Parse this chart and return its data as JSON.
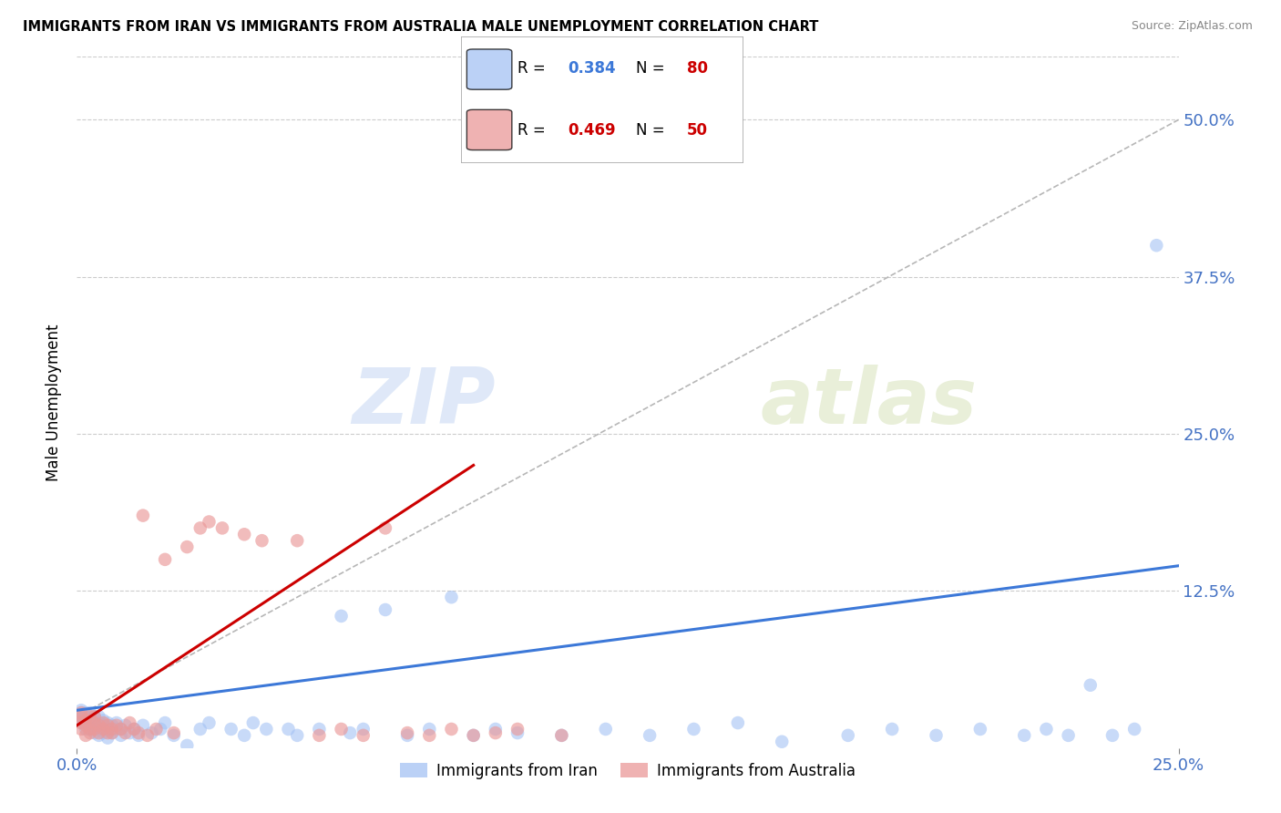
{
  "title": "IMMIGRANTS FROM IRAN VS IMMIGRANTS FROM AUSTRALIA MALE UNEMPLOYMENT CORRELATION CHART",
  "source": "Source: ZipAtlas.com",
  "ylabel": "Male Unemployment",
  "y_tick_labels": [
    "50.0%",
    "37.5%",
    "25.0%",
    "12.5%"
  ],
  "y_tick_values": [
    0.5,
    0.375,
    0.25,
    0.125
  ],
  "xmin": 0.0,
  "xmax": 0.25,
  "ymin": 0.0,
  "ymax": 0.55,
  "iran_color": "#a4c2f4",
  "australia_color": "#ea9999",
  "iran_line_color": "#3c78d8",
  "australia_line_color": "#cc0000",
  "dashed_line_color": "#b7b7b7",
  "watermark_color": "#c9daf8",
  "background_color": "#ffffff",
  "grid_color": "#cccccc",
  "iran_trend": [
    0.0,
    0.25,
    0.03,
    0.145
  ],
  "aus_trend": [
    0.0,
    0.09,
    0.018,
    0.225
  ],
  "diag_line": [
    0.0,
    0.25,
    0.025,
    0.5
  ],
  "iran_scatter_x": [
    0.001,
    0.001,
    0.001,
    0.001,
    0.002,
    0.002,
    0.002,
    0.002,
    0.002,
    0.003,
    0.003,
    0.003,
    0.003,
    0.003,
    0.004,
    0.004,
    0.004,
    0.004,
    0.005,
    0.005,
    0.005,
    0.005,
    0.006,
    0.006,
    0.006,
    0.007,
    0.007,
    0.007,
    0.008,
    0.008,
    0.009,
    0.009,
    0.01,
    0.01,
    0.011,
    0.012,
    0.013,
    0.014,
    0.015,
    0.017,
    0.019,
    0.02,
    0.022,
    0.025,
    0.028,
    0.03,
    0.035,
    0.038,
    0.04,
    0.043,
    0.048,
    0.05,
    0.055,
    0.06,
    0.062,
    0.065,
    0.07,
    0.075,
    0.08,
    0.085,
    0.09,
    0.095,
    0.1,
    0.11,
    0.12,
    0.13,
    0.14,
    0.15,
    0.16,
    0.175,
    0.185,
    0.195,
    0.205,
    0.215,
    0.22,
    0.225,
    0.23,
    0.235,
    0.24,
    0.245
  ],
  "iran_scatter_y": [
    0.02,
    0.025,
    0.028,
    0.03,
    0.015,
    0.02,
    0.025,
    0.028,
    0.022,
    0.018,
    0.022,
    0.025,
    0.028,
    0.015,
    0.02,
    0.025,
    0.018,
    0.012,
    0.015,
    0.02,
    0.025,
    0.01,
    0.018,
    0.022,
    0.012,
    0.015,
    0.02,
    0.008,
    0.018,
    0.012,
    0.015,
    0.02,
    0.015,
    0.01,
    0.018,
    0.012,
    0.015,
    0.01,
    0.018,
    0.012,
    0.015,
    0.02,
    0.01,
    0.002,
    0.015,
    0.02,
    0.015,
    0.01,
    0.02,
    0.015,
    0.015,
    0.01,
    0.015,
    0.105,
    0.012,
    0.015,
    0.11,
    0.01,
    0.015,
    0.12,
    0.01,
    0.015,
    0.012,
    0.01,
    0.015,
    0.01,
    0.015,
    0.02,
    0.005,
    0.01,
    0.015,
    0.01,
    0.015,
    0.01,
    0.015,
    0.01,
    0.05,
    0.01,
    0.015,
    0.4
  ],
  "australia_scatter_x": [
    0.001,
    0.001,
    0.001,
    0.001,
    0.002,
    0.002,
    0.002,
    0.003,
    0.003,
    0.003,
    0.004,
    0.004,
    0.004,
    0.005,
    0.005,
    0.006,
    0.006,
    0.007,
    0.007,
    0.008,
    0.008,
    0.009,
    0.01,
    0.011,
    0.012,
    0.013,
    0.014,
    0.015,
    0.016,
    0.018,
    0.02,
    0.022,
    0.025,
    0.028,
    0.03,
    0.033,
    0.038,
    0.042,
    0.05,
    0.055,
    0.06,
    0.065,
    0.07,
    0.075,
    0.08,
    0.085,
    0.09,
    0.095,
    0.1,
    0.11
  ],
  "australia_scatter_y": [
    0.02,
    0.025,
    0.015,
    0.028,
    0.018,
    0.022,
    0.01,
    0.015,
    0.025,
    0.012,
    0.02,
    0.015,
    0.025,
    0.018,
    0.012,
    0.015,
    0.02,
    0.012,
    0.018,
    0.015,
    0.012,
    0.018,
    0.015,
    0.012,
    0.02,
    0.015,
    0.012,
    0.185,
    0.01,
    0.015,
    0.15,
    0.012,
    0.16,
    0.175,
    0.18,
    0.175,
    0.17,
    0.165,
    0.165,
    0.01,
    0.015,
    0.01,
    0.175,
    0.012,
    0.01,
    0.015,
    0.01,
    0.012,
    0.015,
    0.01
  ]
}
